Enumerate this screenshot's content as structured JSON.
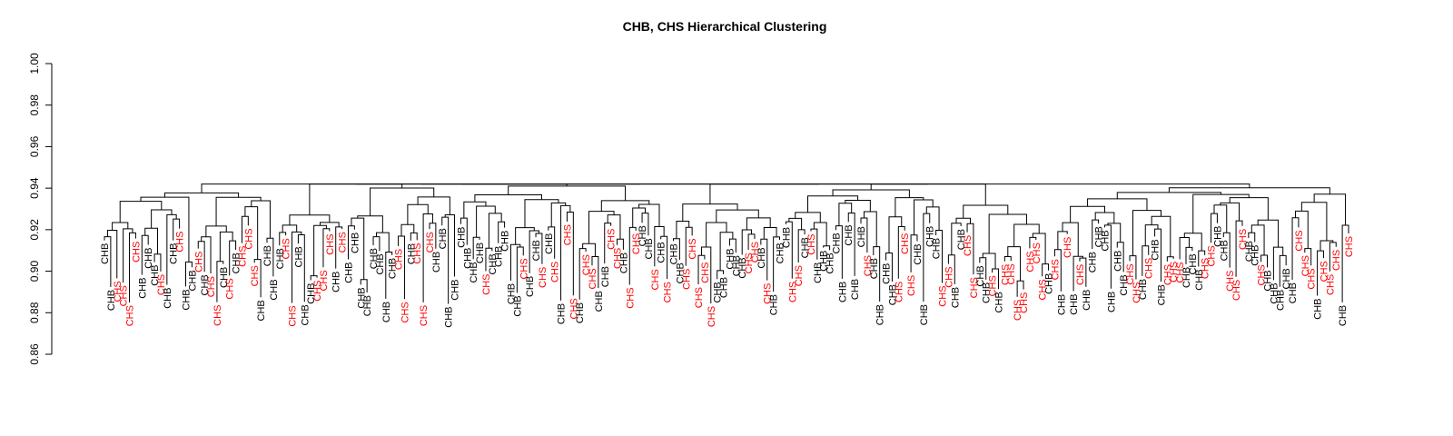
{
  "chart_data": {
    "type": "dendrogram",
    "title": "CHB, CHS Hierarchical Clustering",
    "xlabel": "",
    "ylabel": "",
    "ylim": [
      0.86,
      1.0
    ],
    "yticks": [
      "0.86",
      "0.88",
      "0.90",
      "0.92",
      "0.94",
      "0.96",
      "0.98",
      "1.00"
    ],
    "label_colors": {
      "CHB": "#000000",
      "CHS": "#ff0000"
    },
    "leaf_count": 200,
    "root_height": 0.942,
    "leaf_heights_range": [
      0.88,
      0.93
    ],
    "groups": [
      "CHB",
      "CHS"
    ]
  }
}
